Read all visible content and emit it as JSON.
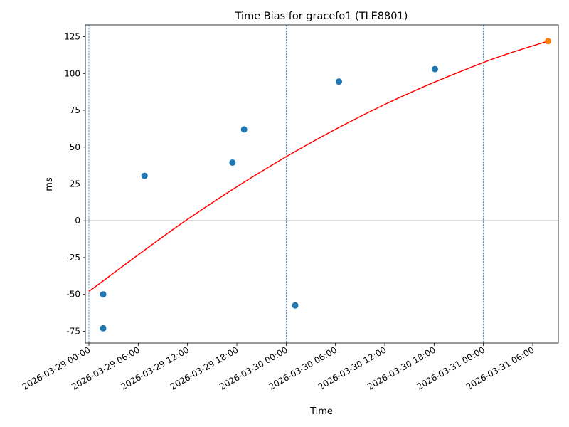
{
  "chart_data": {
    "type": "scatter",
    "title": "Time Bias for gracefo1 (TLE8801)",
    "xlabel": "Time",
    "ylabel": "ms",
    "xlim": [
      "2026-03-28T23:34",
      "2026-03-31T09:07"
    ],
    "ylim": [
      -83,
      133
    ],
    "x_ticks": [
      "2026-03-29 00:00",
      "2026-03-29 06:00",
      "2026-03-29 12:00",
      "2026-03-29 18:00",
      "2026-03-30 00:00",
      "2026-03-30 06:00",
      "2026-03-30 12:00",
      "2026-03-30 18:00",
      "2026-03-31 00:00",
      "2026-03-31 06:00"
    ],
    "y_ticks": [
      -75,
      -50,
      -25,
      0,
      25,
      50,
      75,
      100,
      125
    ],
    "grid": false,
    "day_boundaries": [
      "2026-03-29T00:00",
      "2026-03-30T00:00",
      "2026-03-31T00:00"
    ],
    "zero_line": 0,
    "series": [
      {
        "kind": "scatter",
        "color": "#1f77b4",
        "points": [
          {
            "x": "2026-03-29T01:44",
            "y": -50
          },
          {
            "x": "2026-03-29T01:44",
            "y": -73
          },
          {
            "x": "2026-03-29T06:46",
            "y": 30.5
          },
          {
            "x": "2026-03-29T17:28",
            "y": 39.5
          },
          {
            "x": "2026-03-29T18:53",
            "y": 62
          },
          {
            "x": "2026-03-30T01:06",
            "y": -57.5
          },
          {
            "x": "2026-03-30T06:25",
            "y": 94.5
          },
          {
            "x": "2026-03-30T18:06",
            "y": 103
          }
        ]
      },
      {
        "kind": "scatter",
        "color": "#ff7f0e",
        "points": [
          {
            "x": "2026-03-31T07:52",
            "y": 122
          }
        ]
      },
      {
        "kind": "line",
        "color": "#ff0000",
        "points": [
          {
            "x": "2026-03-29T00:00",
            "y": -48
          },
          {
            "x": "2026-03-29T12:00",
            "y": 1
          },
          {
            "x": "2026-03-30T00:00",
            "y": 43.5
          },
          {
            "x": "2026-03-30T12:00",
            "y": 79
          },
          {
            "x": "2026-03-31T00:00",
            "y": 107.5
          },
          {
            "x": "2026-03-31T07:52",
            "y": 122
          }
        ]
      }
    ],
    "colors": {
      "axes": "#000000",
      "zero_line": "#000000",
      "day_boundary": "#1f77b4"
    }
  }
}
